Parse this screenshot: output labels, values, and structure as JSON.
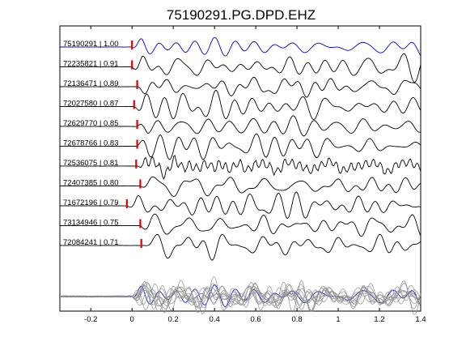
{
  "chart_data": {
    "type": "line",
    "title": "75190291.PG.DPD.EHZ",
    "xlabel": "",
    "ylabel": "",
    "xlim": [
      -0.35,
      1.4
    ],
    "x_ticks": [
      "-0.2",
      "0",
      "0.2",
      "0.4",
      "0.6",
      "0.8",
      "1",
      "1.2",
      "1.4"
    ],
    "x_tick_values": [
      -0.2,
      0,
      0.2,
      0.4,
      0.6,
      0.8,
      1.0,
      1.2,
      1.4
    ],
    "grid": false,
    "pick_color": "#e00000",
    "master_color": "#0000cc",
    "trace_color": "#000000",
    "stack_color": "#8c8c8c",
    "traces": [
      {
        "label": "75190291 | 1.00",
        "event_id": "75190291",
        "correlation": 1.0,
        "pick_time": 0.0
      },
      {
        "label": "72235821 | 0.91",
        "event_id": "72235821",
        "correlation": 0.91,
        "pick_time": 0.0
      },
      {
        "label": "72136471 | 0.89",
        "event_id": "72136471",
        "correlation": 0.89,
        "pick_time": 0.025
      },
      {
        "label": "72027580 | 0.87",
        "event_id": "72027580",
        "correlation": 0.87,
        "pick_time": 0.01
      },
      {
        "label": "72629770 | 0.85",
        "event_id": "72629770",
        "correlation": 0.85,
        "pick_time": 0.025
      },
      {
        "label": "72678766 | 0.83",
        "event_id": "72678766",
        "correlation": 0.83,
        "pick_time": 0.025
      },
      {
        "label": "72536075 | 0.81",
        "event_id": "72536075",
        "correlation": 0.81,
        "pick_time": 0.02
      },
      {
        "label": "72407385 | 0.80",
        "event_id": "72407385",
        "correlation": 0.8,
        "pick_time": 0.04
      },
      {
        "label": "71672196 | 0.79",
        "event_id": "71672196",
        "correlation": 0.79,
        "pick_time": -0.025
      },
      {
        "label": "73134946 | 0.75",
        "event_id": "73134946",
        "correlation": 0.75,
        "pick_time": 0.04
      },
      {
        "label": "72084241 | 0.71",
        "event_id": "72084241",
        "correlation": 0.71,
        "pick_time": 0.045
      }
    ],
    "stack": {
      "description_visible": false
    }
  }
}
